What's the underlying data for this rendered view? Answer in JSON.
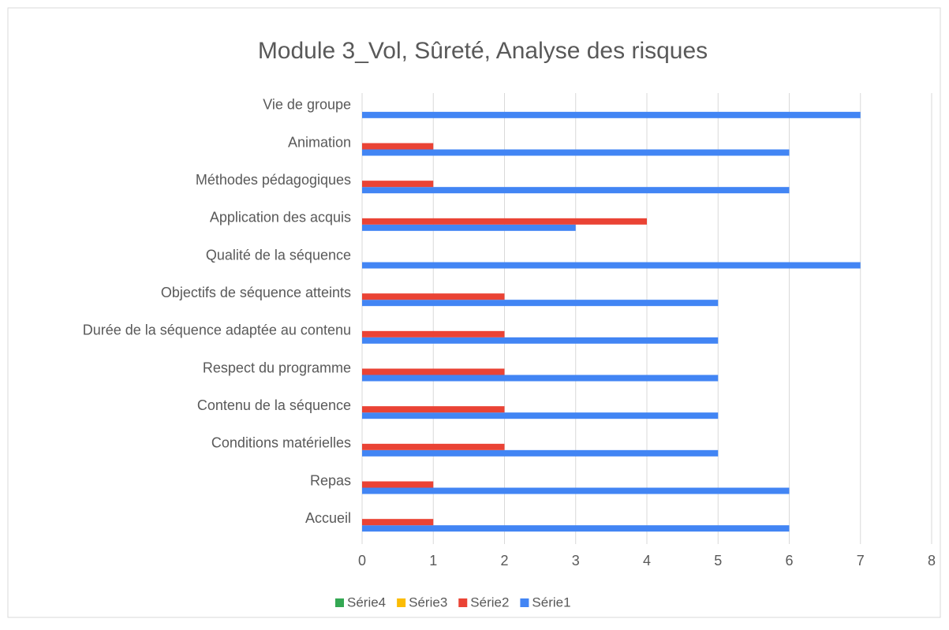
{
  "chart_data": {
    "type": "bar",
    "orientation": "horizontal",
    "title": "Module 3_Vol, Sûreté, Analyse des risques",
    "categories": [
      "Accueil",
      "Repas",
      "Conditions matérielles",
      "Contenu de la séquence",
      "Respect du programme",
      "Durée de la séquence adaptée au contenu",
      "Objectifs de séquence atteints",
      "Qualité de la séquence",
      "Application des acquis",
      "Méthodes pédagogiques",
      "Animation",
      "Vie de groupe"
    ],
    "series": [
      {
        "name": "Série1",
        "color": "#4285f4",
        "values": [
          6,
          6,
          5,
          5,
          5,
          5,
          5,
          7,
          3,
          6,
          6,
          7
        ]
      },
      {
        "name": "Série2",
        "color": "#ea4335",
        "values": [
          1,
          1,
          2,
          2,
          2,
          2,
          2,
          null,
          4,
          1,
          1,
          null
        ]
      },
      {
        "name": "Série3",
        "color": "#fbbc04",
        "values": [
          null,
          null,
          null,
          null,
          null,
          null,
          null,
          null,
          null,
          null,
          null,
          null
        ]
      },
      {
        "name": "Série4",
        "color": "#34a853",
        "values": [
          null,
          null,
          null,
          null,
          null,
          null,
          null,
          null,
          null,
          null,
          null,
          null
        ]
      }
    ],
    "xlim": [
      0,
      8
    ],
    "xticks": [
      0,
      1,
      2,
      3,
      4,
      5,
      6,
      7,
      8
    ],
    "grid": true,
    "legend": "bottom"
  }
}
